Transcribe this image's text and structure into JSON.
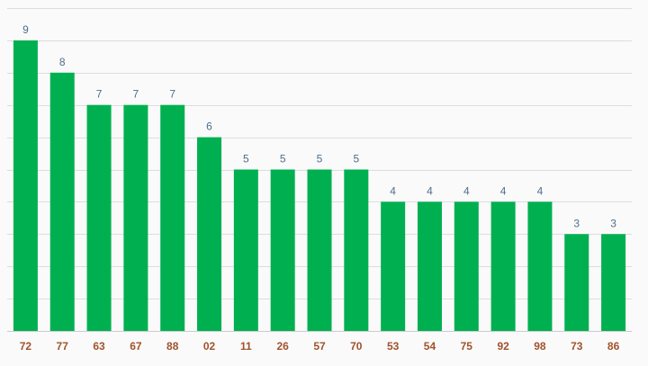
{
  "chart_data": {
    "type": "bar",
    "title": "",
    "xlabel": "",
    "ylabel": "",
    "categories": [
      "72",
      "77",
      "63",
      "67",
      "88",
      "02",
      "11",
      "26",
      "57",
      "70",
      "53",
      "54",
      "75",
      "92",
      "98",
      "73",
      "86"
    ],
    "values": [
      9,
      8,
      7,
      7,
      7,
      6,
      5,
      5,
      5,
      5,
      4,
      4,
      4,
      4,
      4,
      3,
      3
    ],
    "ylim": [
      0,
      10
    ],
    "gridlines": true,
    "legend": "none",
    "colors": {
      "bar": "#00b050",
      "value_label": "#4e6f8e",
      "tick_label": "#a0522d",
      "grid": "#dddddd"
    }
  }
}
